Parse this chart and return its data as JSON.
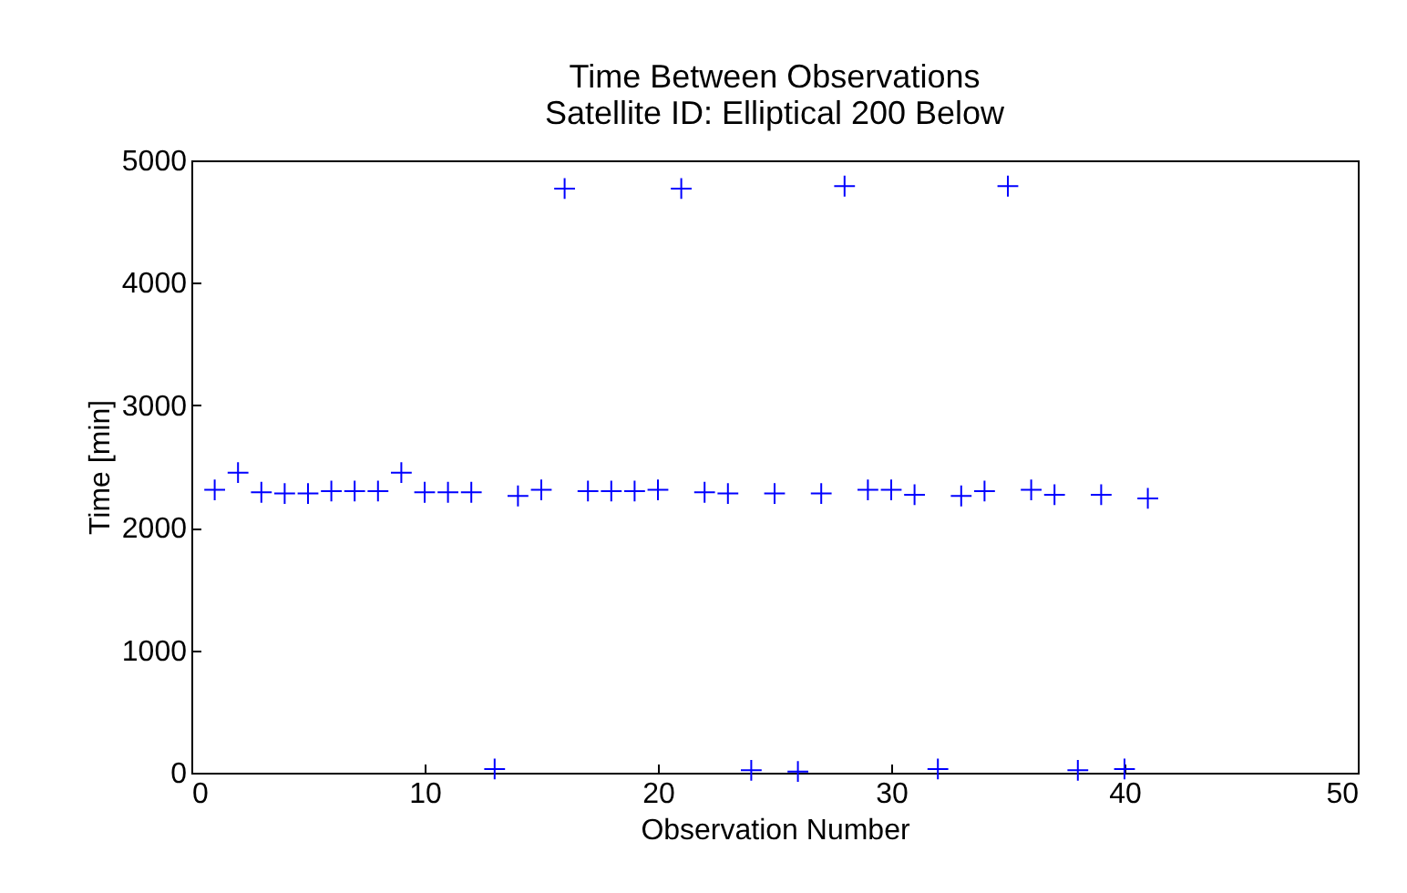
{
  "chart_data": {
    "type": "scatter",
    "title": "Time Between Observations",
    "subtitle": "Satellite ID: Elliptical 200 Below",
    "xlabel": "Observation Number",
    "ylabel": "Time [min]",
    "x": [
      1,
      2,
      3,
      4,
      5,
      6,
      7,
      8,
      9,
      10,
      11,
      12,
      13,
      14,
      15,
      16,
      17,
      18,
      19,
      20,
      21,
      22,
      23,
      24,
      25,
      26,
      27,
      28,
      29,
      30,
      31,
      32,
      33,
      34,
      35,
      36,
      37,
      38,
      39,
      40,
      41
    ],
    "series": [
      {
        "color": "#0000ff",
        "values": [
          2310,
          2450,
          2290,
          2280,
          2280,
          2300,
          2300,
          2300,
          2450,
          2290,
          2290,
          2290,
          30,
          2260,
          2310,
          4770,
          2300,
          2300,
          2300,
          2310,
          4770,
          2290,
          2280,
          20,
          2280,
          10,
          2280,
          4790,
          2310,
          2310,
          2270,
          30,
          2260,
          2300,
          4790,
          2310,
          2270,
          20,
          2270,
          30,
          2240
        ]
      }
    ],
    "xlim": [
      0,
      50
    ],
    "xticks": [
      0,
      10,
      20,
      30,
      40,
      50
    ],
    "ylim": [
      0,
      5000
    ],
    "yticks": [
      0,
      1000,
      2000,
      3000,
      4000,
      5000
    ],
    "grid": false,
    "marker": "cross"
  }
}
